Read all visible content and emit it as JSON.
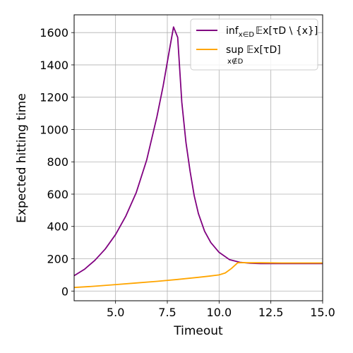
{
  "chart_data": {
    "type": "line",
    "xlabel": "Timeout",
    "ylabel": "Expected hitting time",
    "xlim": [
      3.0,
      15.0
    ],
    "ylim": [
      -60,
      1710
    ],
    "x_ticks": [
      5.0,
      7.5,
      10.0,
      12.5,
      15.0
    ],
    "x_tick_labels": [
      "5.0",
      "7.5",
      "10.0",
      "12.5",
      "15.0"
    ],
    "y_ticks": [
      0,
      200,
      400,
      600,
      800,
      1000,
      1200,
      1400,
      1600
    ],
    "y_tick_labels": [
      "0",
      "200",
      "400",
      "600",
      "800",
      "1000",
      "1200",
      "1400",
      "1600"
    ],
    "grid": true,
    "legend_position": "top-right",
    "series": [
      {
        "legend": {
          "main": "inf",
          "sub": "x∈D",
          "expr": "𝔼x[τD \\ {x}]"
        },
        "color": "#800080",
        "x": [
          3.0,
          3.5,
          4.0,
          4.5,
          5.0,
          5.5,
          6.0,
          6.5,
          7.0,
          7.3,
          7.6,
          7.8,
          8.0,
          8.2,
          8.4,
          8.6,
          8.8,
          9.0,
          9.3,
          9.6,
          10.0,
          10.5,
          11.0,
          11.5,
          12.0,
          12.5,
          13.0,
          14.0,
          15.0
        ],
        "y": [
          95,
          135,
          190,
          260,
          350,
          465,
          610,
          810,
          1080,
          1270,
          1490,
          1635,
          1570,
          1170,
          920,
          740,
          590,
          480,
          370,
          300,
          240,
          195,
          178,
          172,
          170,
          170,
          170,
          170,
          170
        ]
      },
      {
        "legend": {
          "main": "sup",
          "sub": "x∉D",
          "expr": "𝔼x[τD]"
        },
        "color": "#ffa500",
        "x": [
          3.0,
          4.0,
          5.0,
          6.0,
          7.0,
          8.0,
          9.0,
          9.5,
          10.0,
          10.3,
          10.6,
          10.9,
          11.2,
          11.5,
          12.0,
          13.0,
          14.0,
          15.0
        ],
        "y": [
          22,
          30,
          40,
          50,
          60,
          72,
          85,
          92,
          100,
          112,
          140,
          175,
          176,
          175,
          175,
          174,
          174,
          174
        ]
      }
    ]
  }
}
